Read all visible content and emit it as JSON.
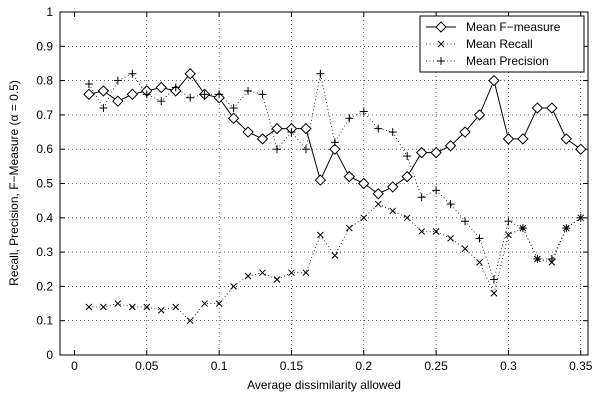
{
  "chart_data": {
    "type": "line",
    "title": "",
    "xlabel": "Average dissimilarity allowed",
    "ylabel": "Recall, Precision, F−Measure (α = 0.5)",
    "xlim": [
      -0.01,
      0.355
    ],
    "ylim": [
      0,
      1
    ],
    "xticks": [
      0,
      0.05,
      0.1,
      0.15,
      0.2,
      0.25,
      0.3,
      0.35
    ],
    "xtick_labels": [
      "0",
      "0.05",
      "0.1",
      "0.15",
      "0.2",
      "0.25",
      "0.3",
      "0.35"
    ],
    "yticks": [
      0,
      0.1,
      0.2,
      0.3,
      0.4,
      0.5,
      0.6,
      0.7,
      0.8,
      0.9,
      1
    ],
    "ytick_labels": [
      "0",
      "0.1",
      "0.2",
      "0.3",
      "0.4",
      "0.5",
      "0.6",
      "0.7",
      "0.8",
      "0.9",
      "1"
    ],
    "grid": true,
    "legend_position": "top-right",
    "x": [
      0.01,
      0.02,
      0.03,
      0.04,
      0.05,
      0.06,
      0.07,
      0.08,
      0.09,
      0.1,
      0.11,
      0.12,
      0.13,
      0.14,
      0.15,
      0.16,
      0.17,
      0.18,
      0.19,
      0.2,
      0.21,
      0.22,
      0.23,
      0.24,
      0.25,
      0.26,
      0.27,
      0.28,
      0.29,
      0.3,
      0.31,
      0.32,
      0.33,
      0.34,
      0.35
    ],
    "series": [
      {
        "name": "Mean F−measure",
        "marker": "diamond",
        "line": "solid",
        "values": [
          0.76,
          0.77,
          0.74,
          0.76,
          0.77,
          0.78,
          0.77,
          0.82,
          0.76,
          0.75,
          0.69,
          0.65,
          0.63,
          0.66,
          0.66,
          0.66,
          0.51,
          0.6,
          0.52,
          0.5,
          0.47,
          0.49,
          0.52,
          0.59,
          0.59,
          0.61,
          0.65,
          0.7,
          0.8,
          0.63,
          0.63,
          0.72,
          0.72,
          0.63,
          0.6
        ]
      },
      {
        "name": "Mean Recall",
        "marker": "x",
        "line": "dotted",
        "values": [
          0.14,
          0.14,
          0.15,
          0.14,
          0.14,
          0.13,
          0.14,
          0.1,
          0.15,
          0.15,
          0.2,
          0.23,
          0.24,
          0.22,
          0.24,
          0.24,
          0.35,
          0.29,
          0.37,
          0.4,
          0.44,
          0.42,
          0.4,
          0.36,
          0.36,
          0.34,
          0.31,
          0.27,
          0.18,
          0.35,
          0.37,
          0.28,
          0.27,
          0.37,
          0.4
        ]
      },
      {
        "name": "Mean Precision",
        "marker": "plus",
        "line": "dotted",
        "values": [
          0.79,
          0.72,
          0.8,
          0.82,
          0.76,
          0.74,
          0.78,
          0.75,
          0.76,
          0.76,
          0.72,
          0.77,
          0.76,
          0.6,
          0.65,
          0.6,
          0.82,
          0.62,
          0.69,
          0.71,
          0.66,
          0.65,
          0.58,
          0.46,
          0.48,
          0.44,
          0.39,
          0.34,
          0.22,
          0.39,
          0.37,
          0.28,
          0.28,
          0.37,
          0.4
        ]
      }
    ]
  }
}
